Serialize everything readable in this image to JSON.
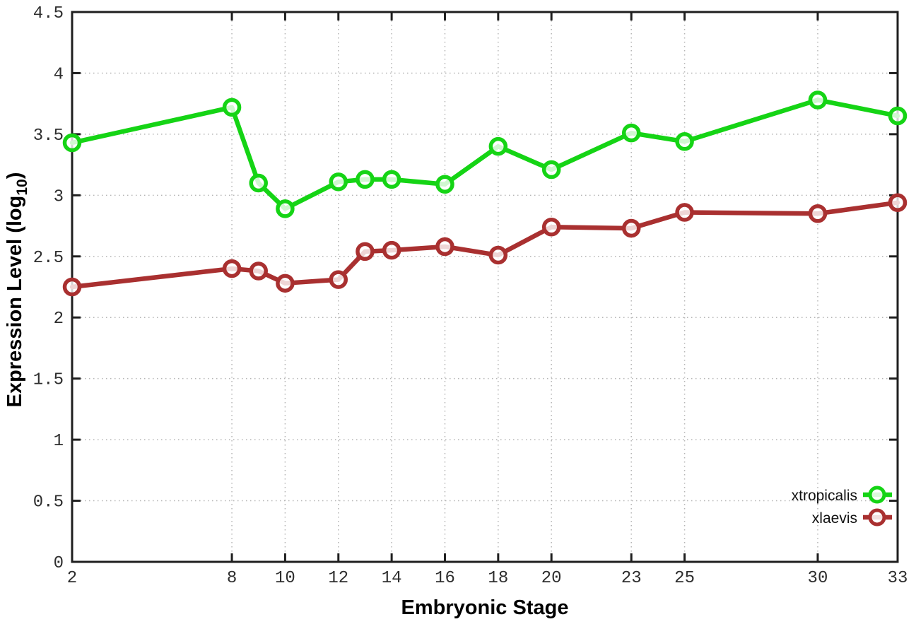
{
  "chart_data": {
    "type": "line",
    "title": "",
    "xlabel": "Embryonic Stage",
    "ylabel": "Expression Level (log10)",
    "ylabel_prefix": "Expression Level (log",
    "ylabel_subscript": "10",
    "ylabel_suffix": ")",
    "xlim": [
      2,
      33
    ],
    "ylim": [
      0,
      4.5
    ],
    "grid": true,
    "grid_style": "dotted",
    "legend_position": "inside-right-bottom",
    "x_ticks": [
      2,
      8,
      10,
      12,
      14,
      16,
      18,
      20,
      23,
      25,
      30,
      33
    ],
    "y_ticks": [
      0,
      0.5,
      1,
      1.5,
      2,
      2.5,
      3,
      3.5,
      4,
      4.5
    ],
    "y_tick_labels": [
      "0",
      "0.5",
      "1",
      "1.5",
      "2",
      "2.5",
      "3",
      "3.5",
      "4",
      "4.5"
    ],
    "x": [
      2,
      8,
      9,
      10,
      12,
      13,
      14,
      16,
      18,
      20,
      23,
      25,
      30,
      33
    ],
    "series": [
      {
        "name": "xtropicalis",
        "color": "#15d415",
        "values": [
          3.43,
          3.72,
          3.1,
          2.89,
          3.11,
          3.13,
          3.13,
          3.09,
          3.4,
          3.21,
          3.51,
          3.44,
          3.78,
          3.65
        ]
      },
      {
        "name": "xlaevis",
        "color": "#a93030",
        "values": [
          2.25,
          2.4,
          2.38,
          2.28,
          2.31,
          2.54,
          2.55,
          2.58,
          2.51,
          2.74,
          2.73,
          2.86,
          2.85,
          2.94
        ]
      }
    ]
  },
  "colors": {
    "background": "#ffffff",
    "grid": "#b5b5b5",
    "axis": "#1f1f1f",
    "tick_text": "#2e2e2e",
    "label_text": "#000000"
  }
}
